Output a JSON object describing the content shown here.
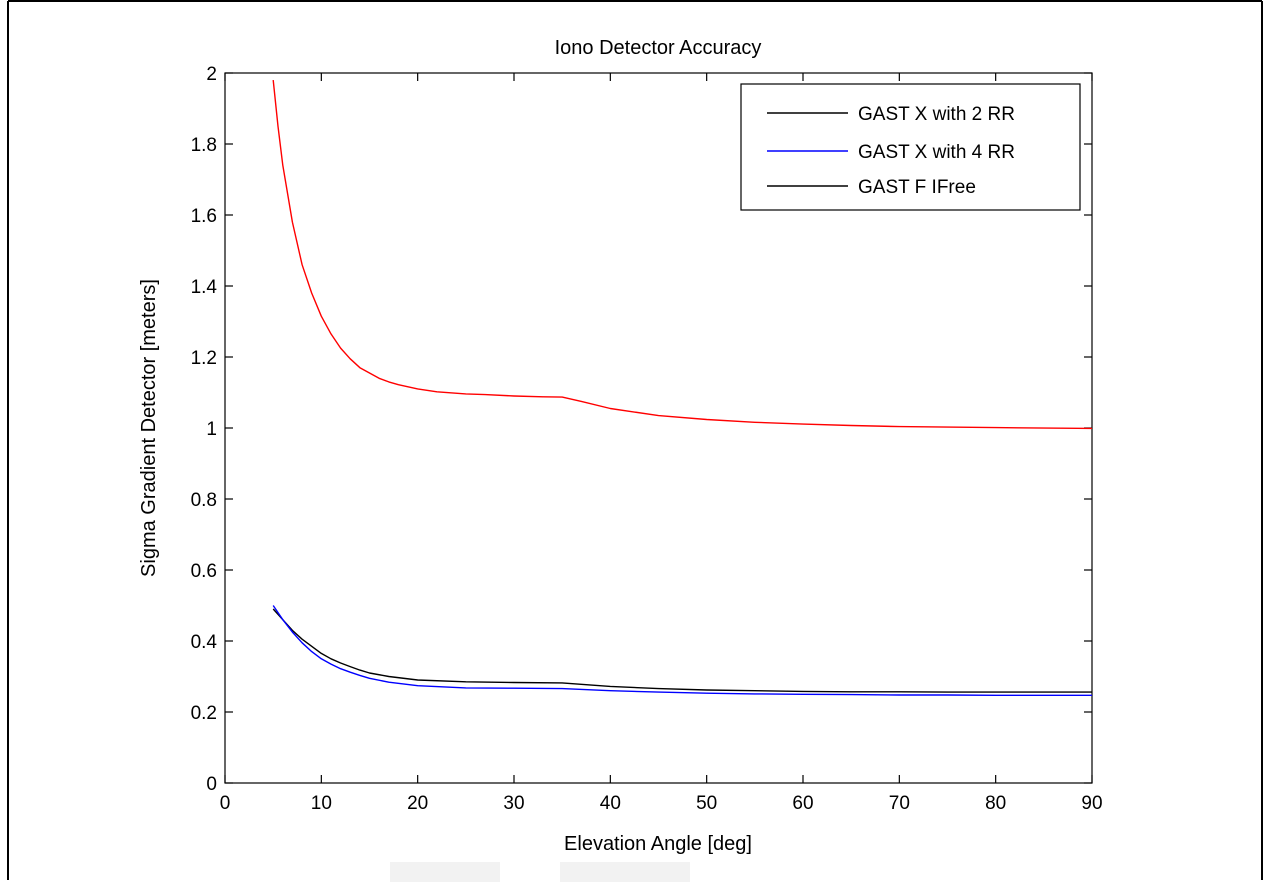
{
  "chart_data": {
    "type": "line",
    "title": "Iono Detector Accuracy",
    "xlabel": "Elevation Angle [deg]",
    "ylabel": "Sigma Gradient Detector  [meters]",
    "xlim": [
      0,
      90
    ],
    "ylim": [
      0,
      2
    ],
    "xticks": [
      "0",
      "10",
      "20",
      "30",
      "40",
      "50",
      "60",
      "70",
      "80",
      "90"
    ],
    "yticks": [
      "0",
      "0.2",
      "0.4",
      "0.6",
      "0.8",
      "1",
      "1.2",
      "1.4",
      "1.6",
      "1.8",
      "2"
    ],
    "grid": false,
    "legend_position": "top-right",
    "legend": [
      "GAST X with 2 RR",
      "GAST X with 4 RR",
      "GAST F IFree"
    ],
    "series": [
      {
        "name": "GAST X with 2 RR",
        "color": "#000000",
        "x": [
          5,
          6,
          7,
          8,
          9,
          10,
          11,
          12,
          13,
          14,
          15,
          17,
          20,
          25,
          30,
          35,
          40,
          45,
          50,
          55,
          60,
          65,
          70,
          75,
          80,
          85,
          90
        ],
        "y": [
          0.49,
          0.46,
          0.43,
          0.405,
          0.385,
          0.365,
          0.35,
          0.338,
          0.328,
          0.318,
          0.31,
          0.3,
          0.29,
          0.285,
          0.283,
          0.282,
          0.272,
          0.266,
          0.262,
          0.26,
          0.258,
          0.257,
          0.257,
          0.256,
          0.256,
          0.256,
          0.256
        ]
      },
      {
        "name": "GAST X with 4 RR",
        "color": "#0000ff",
        "x": [
          5,
          6,
          7,
          8,
          9,
          10,
          11,
          12,
          13,
          14,
          15,
          17,
          20,
          25,
          30,
          35,
          40,
          45,
          50,
          55,
          60,
          65,
          70,
          75,
          80,
          85,
          90
        ],
        "y": [
          0.5,
          0.46,
          0.425,
          0.395,
          0.37,
          0.35,
          0.335,
          0.322,
          0.312,
          0.303,
          0.295,
          0.284,
          0.274,
          0.268,
          0.267,
          0.266,
          0.26,
          0.256,
          0.253,
          0.251,
          0.25,
          0.249,
          0.248,
          0.248,
          0.247,
          0.247,
          0.247
        ]
      },
      {
        "color": "#ff0000",
        "x": [
          5,
          5.5,
          6,
          7,
          8,
          9,
          10,
          11,
          12,
          13,
          14,
          15,
          16,
          17,
          18,
          20,
          22,
          25,
          27,
          30,
          33,
          35,
          37,
          40,
          45,
          50,
          55,
          60,
          65,
          70,
          80,
          90
        ],
        "y": [
          1.98,
          1.85,
          1.74,
          1.58,
          1.46,
          1.38,
          1.315,
          1.265,
          1.225,
          1.195,
          1.17,
          1.155,
          1.14,
          1.13,
          1.122,
          1.11,
          1.102,
          1.096,
          1.094,
          1.09,
          1.088,
          1.087,
          1.075,
          1.055,
          1.035,
          1.024,
          1.016,
          1.011,
          1.007,
          1.004,
          1.001,
          0.999
        ]
      }
    ]
  }
}
